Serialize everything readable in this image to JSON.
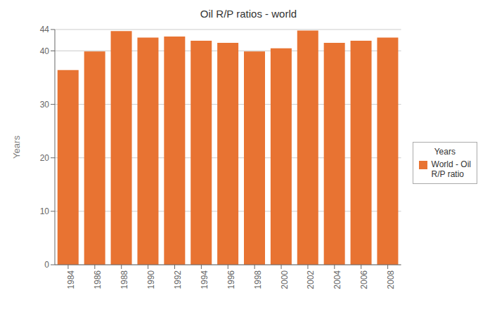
{
  "chart_data": {
    "type": "bar",
    "title": "Oil R/P ratios - world",
    "ylabel": "Years",
    "categories": [
      "1984",
      "1986",
      "1988",
      "1990",
      "1992",
      "1994",
      "1996",
      "1998",
      "2000",
      "2002",
      "2004",
      "2006",
      "2008"
    ],
    "series": [
      {
        "name": "World - Oil\nR/P ratio",
        "color": "#E87332",
        "values": [
          36.4,
          39.9,
          43.7,
          42.5,
          42.7,
          41.9,
          41.5,
          39.9,
          40.5,
          43.8,
          41.5,
          41.9,
          42.5
        ]
      }
    ],
    "ylim": [
      0,
      44
    ],
    "yticks": [
      0,
      10,
      20,
      30,
      40,
      44
    ],
    "grid": true,
    "legend": "right",
    "legend_title": "Years"
  }
}
